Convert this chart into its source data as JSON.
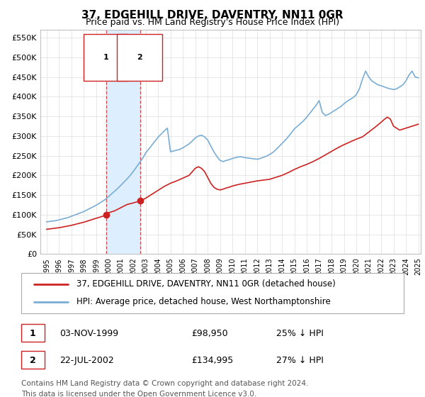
{
  "title": "37, EDGEHILL DRIVE, DAVENTRY, NN11 0GR",
  "subtitle": "Price paid vs. HM Land Registry's House Price Index (HPI)",
  "ylabel_ticks": [
    0,
    50000,
    100000,
    150000,
    200000,
    250000,
    300000,
    350000,
    400000,
    450000,
    500000,
    550000
  ],
  "ylim": [
    0,
    570000
  ],
  "xlim_start": 1994.5,
  "xlim_end": 2025.2,
  "sale1_year": 1999.84,
  "sale1_price": 98950,
  "sale1_label": "1",
  "sale1_date": "03-NOV-1999",
  "sale1_text": "£98,950",
  "sale1_pct": "25% ↓ HPI",
  "sale2_year": 2002.55,
  "sale2_price": 134995,
  "sale2_label": "2",
  "sale2_date": "22-JUL-2002",
  "sale2_text": "£134,995",
  "sale2_pct": "27% ↓ HPI",
  "red_color": "#cc2222",
  "blue_color": "#7aadd4",
  "shade_color": "#ddeeff",
  "grid_color": "#dddddd",
  "legend_line1": "37, EDGEHILL DRIVE, DAVENTRY, NN11 0GR (detached house)",
  "legend_line2": "HPI: Average price, detached house, West Northamptonshire",
  "footer1": "Contains HM Land Registry data © Crown copyright and database right 2024.",
  "footer2": "This data is licensed under the Open Government Licence v3.0.",
  "title_fontsize": 11,
  "subtitle_fontsize": 9,
  "tick_fontsize": 8,
  "legend_fontsize": 8.5,
  "footer_fontsize": 7.5,
  "hpi_years": [
    1995,
    1995.25,
    1995.5,
    1995.75,
    1996,
    1996.25,
    1996.5,
    1996.75,
    1997,
    1997.25,
    1997.5,
    1997.75,
    1998,
    1998.25,
    1998.5,
    1998.75,
    1999,
    1999.25,
    1999.5,
    1999.75,
    2000,
    2000.25,
    2000.5,
    2000.75,
    2001,
    2001.25,
    2001.5,
    2001.75,
    2002,
    2002.25,
    2002.5,
    2002.75,
    2003,
    2003.25,
    2003.5,
    2003.75,
    2004,
    2004.25,
    2004.5,
    2004.75,
    2005,
    2005.25,
    2005.5,
    2005.75,
    2006,
    2006.25,
    2006.5,
    2006.75,
    2007,
    2007.25,
    2007.5,
    2007.75,
    2008,
    2008.25,
    2008.5,
    2008.75,
    2009,
    2009.25,
    2009.5,
    2009.75,
    2010,
    2010.25,
    2010.5,
    2010.75,
    2011,
    2011.25,
    2011.5,
    2011.75,
    2012,
    2012.25,
    2012.5,
    2012.75,
    2013,
    2013.25,
    2013.5,
    2013.75,
    2014,
    2014.25,
    2014.5,
    2014.75,
    2015,
    2015.25,
    2015.5,
    2015.75,
    2016,
    2016.25,
    2016.5,
    2016.75,
    2017,
    2017.25,
    2017.5,
    2017.75,
    2018,
    2018.25,
    2018.5,
    2018.75,
    2019,
    2019.25,
    2019.5,
    2019.75,
    2020,
    2020.25,
    2020.5,
    2020.75,
    2021,
    2021.25,
    2021.5,
    2021.75,
    2022,
    2022.25,
    2022.5,
    2022.75,
    2023,
    2023.25,
    2023.5,
    2023.75,
    2024,
    2024.25,
    2024.5,
    2024.75,
    2025
  ],
  "hpi_values": [
    82000,
    83000,
    84000,
    85000,
    87000,
    89000,
    91000,
    93000,
    96000,
    99000,
    102000,
    105000,
    108000,
    112000,
    116000,
    120000,
    124000,
    129000,
    134000,
    139000,
    146000,
    153000,
    160000,
    167000,
    175000,
    183000,
    191000,
    200000,
    210000,
    221000,
    232000,
    243000,
    257000,
    267000,
    277000,
    287000,
    297000,
    305000,
    313000,
    320000,
    260000,
    262000,
    264000,
    266000,
    270000,
    275000,
    280000,
    287000,
    295000,
    300000,
    302000,
    298000,
    290000,
    275000,
    260000,
    248000,
    238000,
    235000,
    238000,
    240000,
    243000,
    245000,
    247000,
    247000,
    245000,
    244000,
    243000,
    242000,
    241000,
    243000,
    246000,
    249000,
    253000,
    258000,
    265000,
    273000,
    281000,
    289000,
    298000,
    308000,
    318000,
    325000,
    332000,
    339000,
    348000,
    358000,
    368000,
    378000,
    390000,
    360000,
    352000,
    355000,
    360000,
    365000,
    370000,
    375000,
    382000,
    388000,
    393000,
    398000,
    405000,
    420000,
    445000,
    465000,
    450000,
    440000,
    435000,
    430000,
    428000,
    425000,
    422000,
    420000,
    418000,
    420000,
    425000,
    430000,
    440000,
    455000,
    465000,
    450000,
    448000
  ],
  "prop_years": [
    1995,
    1995.5,
    1996,
    1996.5,
    1997,
    1997.5,
    1998,
    1998.5,
    1999,
    1999.84,
    2000,
    2000.5,
    2001,
    2001.5,
    2002,
    2002.55,
    2003,
    2003.5,
    2004,
    2004.5,
    2005,
    2005.5,
    2006,
    2006.5,
    2007,
    2007.25,
    2007.5,
    2007.75,
    2008,
    2008.25,
    2008.5,
    2008.75,
    2009,
    2009.25,
    2009.5,
    2009.75,
    2010,
    2010.5,
    2011,
    2011.5,
    2012,
    2012.5,
    2013,
    2013.5,
    2014,
    2014.5,
    2015,
    2015.5,
    2016,
    2016.5,
    2017,
    2017.5,
    2018,
    2018.5,
    2019,
    2019.5,
    2020,
    2020.5,
    2021,
    2021.5,
    2022,
    2022.25,
    2022.5,
    2022.75,
    2023,
    2023.5,
    2024,
    2024.5,
    2025
  ],
  "prop_values": [
    63000,
    65000,
    67000,
    70000,
    73000,
    77000,
    81000,
    86000,
    91000,
    98950,
    105000,
    110000,
    118000,
    126000,
    130000,
    134995,
    142000,
    152000,
    162000,
    172000,
    180000,
    186000,
    193000,
    200000,
    218000,
    222000,
    218000,
    210000,
    195000,
    180000,
    170000,
    165000,
    163000,
    165000,
    168000,
    170000,
    173000,
    177000,
    180000,
    183000,
    186000,
    188000,
    190000,
    195000,
    200000,
    207000,
    215000,
    222000,
    228000,
    235000,
    243000,
    252000,
    261000,
    270000,
    278000,
    285000,
    292000,
    298000,
    310000,
    322000,
    335000,
    342000,
    348000,
    343000,
    325000,
    315000,
    320000,
    325000,
    330000
  ]
}
